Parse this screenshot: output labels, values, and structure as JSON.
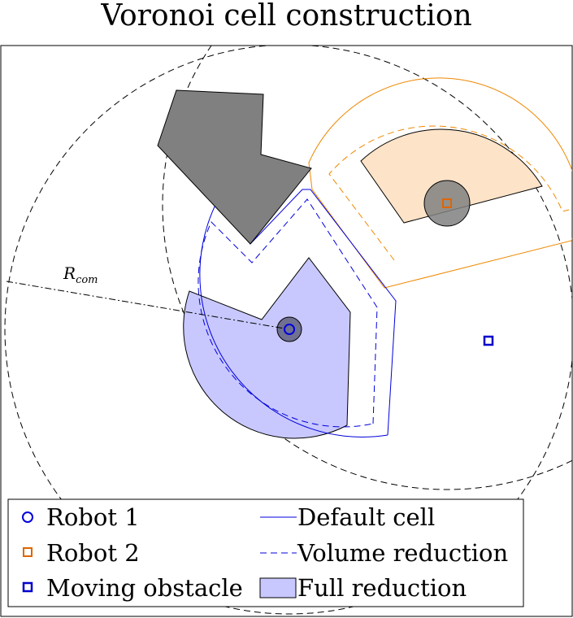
{
  "title": "Voronoi cell construction",
  "annotation": {
    "r_main": "R",
    "r_sub": "com"
  },
  "legend": {
    "items": [
      {
        "id": "robot1",
        "label": "Robot 1",
        "marker": "circle",
        "color": "#0000dd"
      },
      {
        "id": "robot2",
        "label": "Robot 2",
        "marker": "square",
        "color": "#dd6600"
      },
      {
        "id": "moving",
        "label": "Moving obstacle",
        "marker": "square",
        "color": "#0000cc"
      },
      {
        "id": "default",
        "label": "Default cell",
        "marker": "solid-line",
        "color": "#000000"
      },
      {
        "id": "volume",
        "label": "Volume reduction",
        "marker": "dashed-line",
        "color": "#000000"
      },
      {
        "id": "full",
        "label": "Full reduction",
        "marker": "filled-box",
        "color": "#c8c8ff"
      }
    ]
  },
  "colors": {
    "robot1": "#0000dd",
    "robot2": "#ee8800",
    "robot1_fill": "#c8c8ff",
    "robot2_fill": "#fde3c8",
    "obstacle": "#808080",
    "moving_obstacle": "#0000cc"
  }
}
